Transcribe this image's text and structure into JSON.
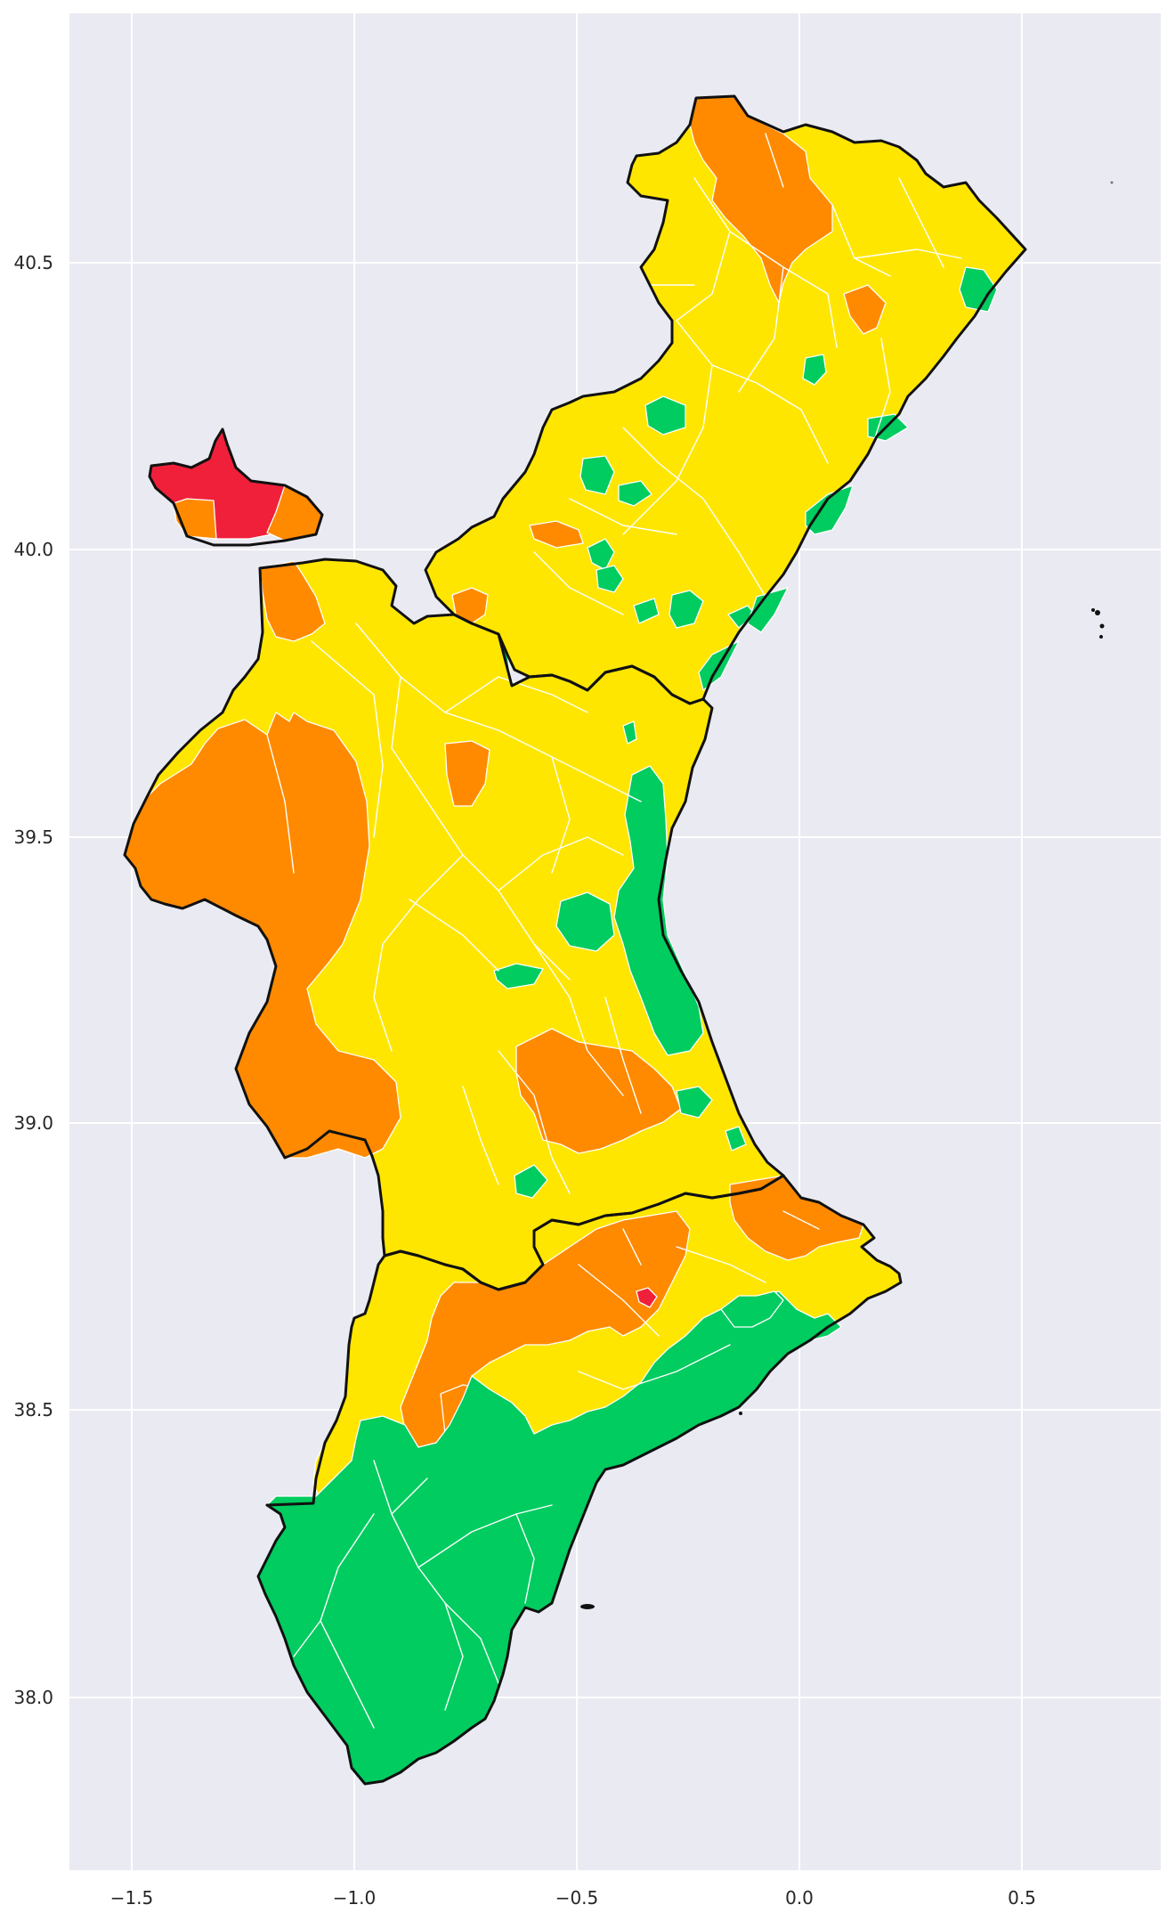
{
  "map": {
    "type": "choropleth",
    "region": "Comunitat Valenciana",
    "x_ticks": [
      "−1.5",
      "−1.0",
      "−0.5",
      "0.0",
      "0.5"
    ],
    "y_ticks": [
      "38.0",
      "38.5",
      "39.0",
      "39.5",
      "40.0",
      "40.5"
    ],
    "xlim": [
      -1.62,
      0.82
    ],
    "ylim": [
      37.72,
      40.92
    ],
    "grid": true,
    "colors": {
      "background": "#EAEAF2",
      "grid": "#FFFFFF",
      "green": "#00CC5F",
      "yellow": "#FFE600",
      "orange": "#FF8A00",
      "red": "#F0203A",
      "outline": "#111111",
      "municipal_border": "#FFFFFF"
    }
  }
}
